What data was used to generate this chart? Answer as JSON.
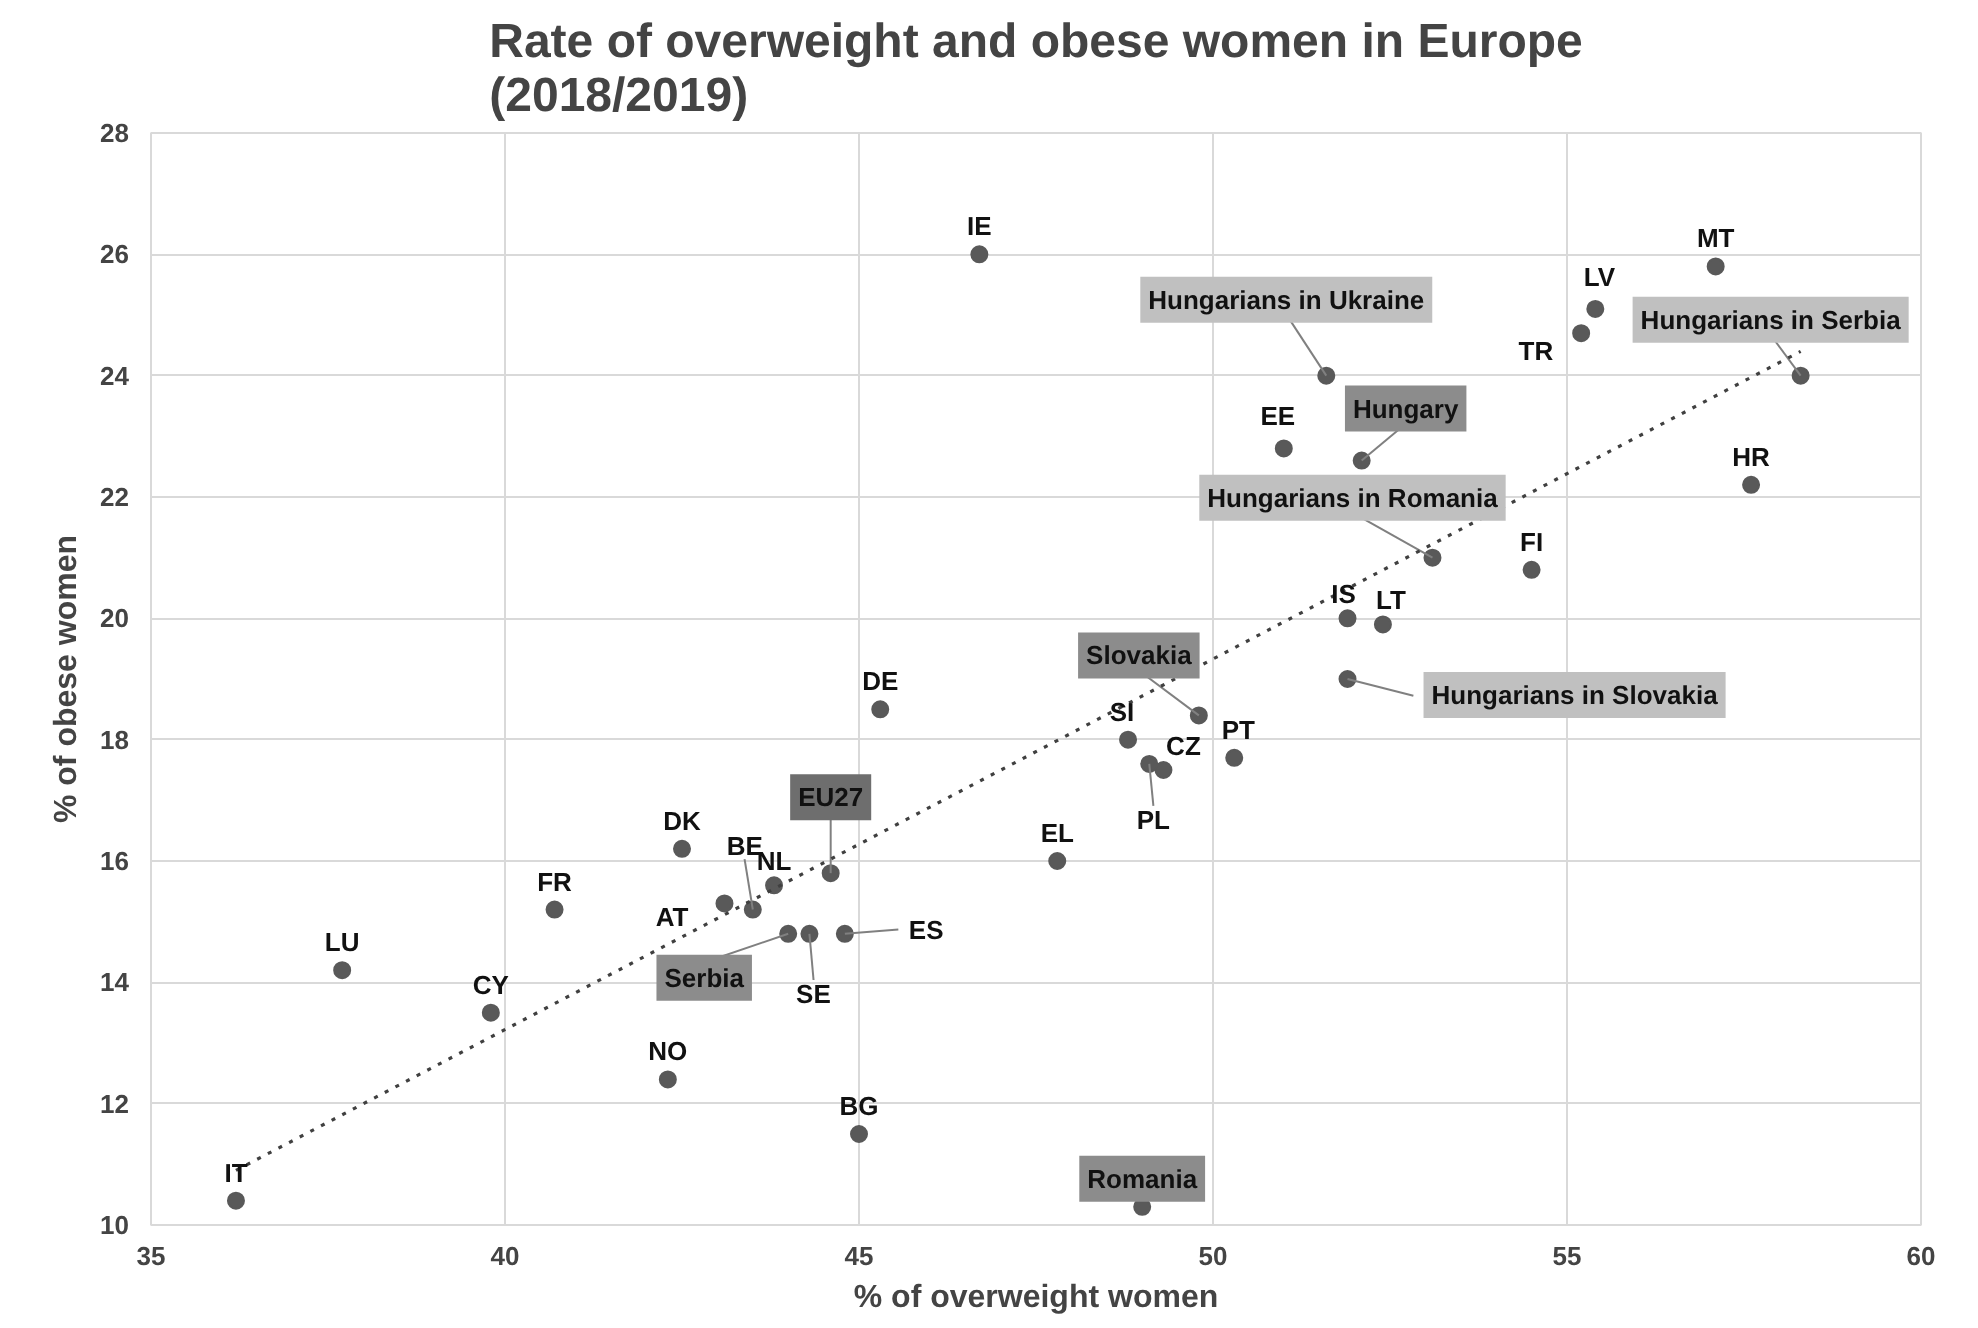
{
  "chart_data": {
    "type": "scatter",
    "title": "Rate of overweight and obese women in Europe\n(2018/2019)",
    "xlabel": "% of overweight women",
    "ylabel": "% of obese women",
    "xlim": [
      35,
      60
    ],
    "xticks": [
      35,
      40,
      45,
      50,
      55,
      60
    ],
    "ylim": [
      10,
      28
    ],
    "yticks": [
      10,
      12,
      14,
      16,
      18,
      20,
      22,
      24,
      26,
      28
    ],
    "grid": true,
    "marker": "circle",
    "series": [
      {
        "color": "#595959",
        "type": "scatter",
        "x": [
          46.7,
          45.3,
          57.1,
          55.4,
          55.2,
          58.3,
          51.6,
          51.0,
          52.1,
          57.6,
          53.1,
          54.5,
          51.9,
          52.4,
          51.9,
          49.8,
          48.8,
          49.3,
          49.1,
          50.3,
          49.0,
          47.8,
          44.6,
          43.8,
          42.5,
          40.7,
          43.1,
          43.5,
          44.0,
          44.3,
          44.8,
          37.7,
          39.8,
          42.3,
          45.0,
          36.2
        ],
        "values": [
          26.0,
          18.5,
          25.8,
          25.1,
          24.7,
          24.0,
          24.0,
          22.8,
          22.6,
          22.2,
          21.0,
          20.8,
          20.0,
          19.9,
          19.0,
          18.4,
          18.0,
          17.5,
          17.6,
          17.7,
          10.3,
          16.0,
          15.8,
          15.6,
          16.2,
          15.2,
          15.3,
          15.2,
          14.8,
          14.8,
          14.8,
          14.2,
          13.5,
          12.4,
          11.5,
          10.4
        ],
        "value_labels": [
          "IE",
          "DE",
          "MT",
          "LV",
          "TR",
          "Hungarians in Serbia",
          "Hungarians in Ukraine",
          "EE",
          "Hungary",
          "HR",
          "Hungarians in Romania",
          "FI",
          "IS",
          "LT",
          "Hungarians in Slovakia",
          "Slovakia",
          "SI",
          "CZ",
          "PL",
          "PT",
          "Romania",
          "EL",
          "EU27",
          "NL",
          "DK",
          "FR",
          "AT",
          "BE",
          "Serbia",
          "SE",
          "ES",
          "LU",
          "CY",
          "NO",
          "BG",
          "IT"
        ]
      },
      {
        "color": "#404040",
        "type": "line",
        "line_style": "dotted",
        "marker": "none",
        "x": [
          36.2,
          58.3
        ],
        "values": [
          10.9,
          24.4
        ]
      }
    ]
  }
}
